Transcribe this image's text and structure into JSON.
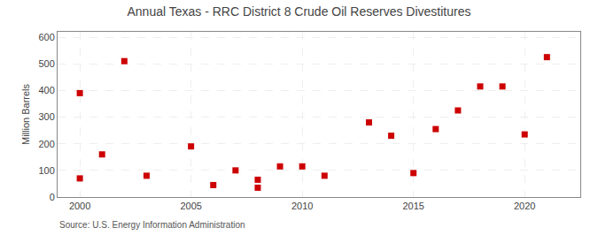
{
  "chart_data": {
    "type": "scatter",
    "title": "Annual Texas - RRC District 8 Crude Oil Reserves Divestitures",
    "ylabel": "Million Barrels",
    "source": "Source: U.S. Energy Information Administration",
    "x": [
      2000,
      2000,
      2001,
      2002,
      2003,
      2005,
      2006,
      2007,
      2008,
      2008,
      2009,
      2010,
      2011,
      2013,
      2014,
      2015,
      2016,
      2017,
      2018,
      2019,
      2020,
      2021
    ],
    "values": [
      390,
      70,
      160,
      510,
      80,
      190,
      45,
      100,
      35,
      65,
      115,
      115,
      80,
      280,
      230,
      90,
      255,
      325,
      415,
      415,
      235,
      525
    ],
    "color": "#cc0000",
    "marker": "square",
    "xlim": [
      1999,
      2022.5
    ],
    "ylim": [
      0,
      620
    ],
    "xticks": [
      2000,
      2005,
      2010,
      2015,
      2020
    ],
    "yticks": [
      0,
      100,
      200,
      300,
      400,
      500,
      600
    ],
    "grid": true
  }
}
